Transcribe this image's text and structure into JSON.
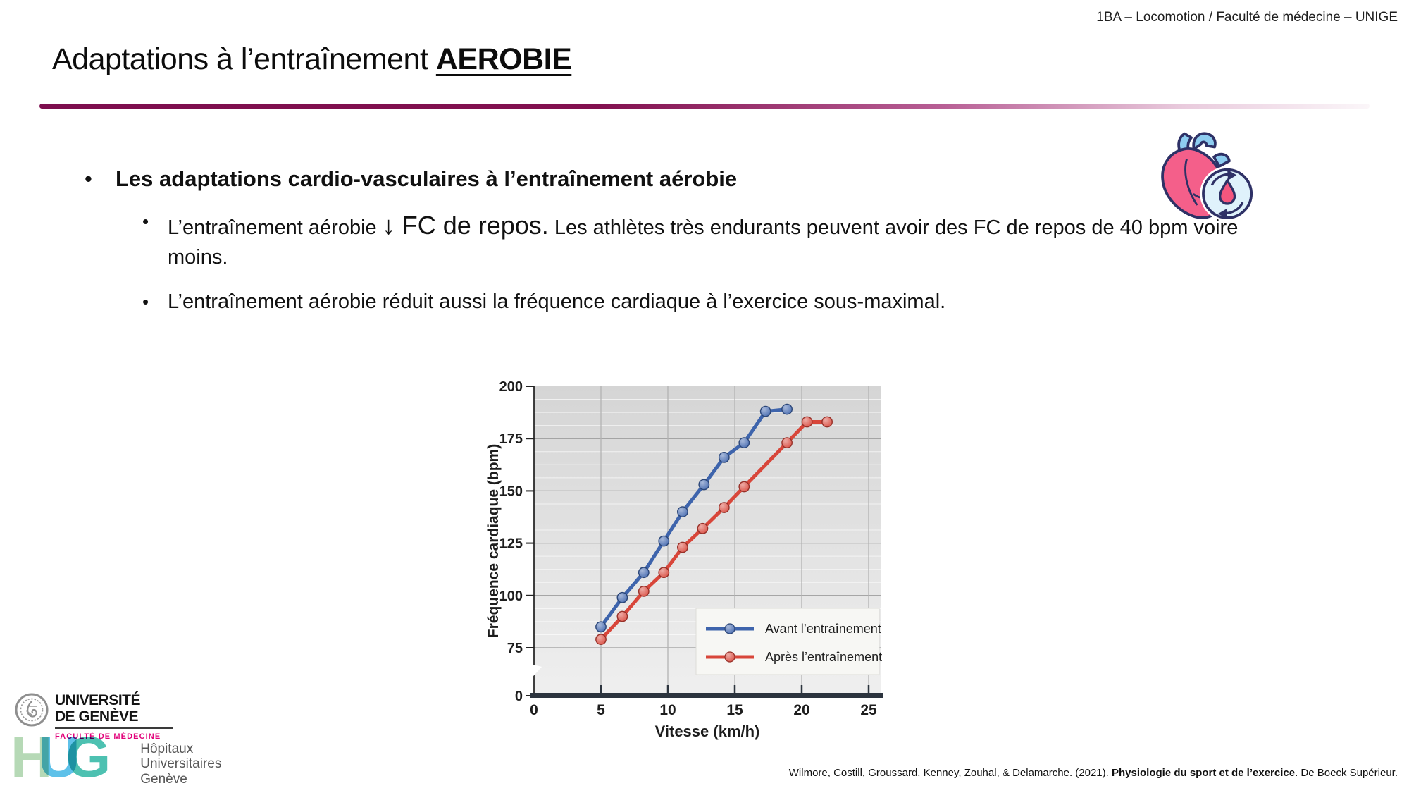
{
  "header": {
    "course": "1BA – Locomotion / Faculté de médecine – UNIGE"
  },
  "title": {
    "prefix": "Adaptations à l’entraînement ",
    "emphasis": "AEROBIE"
  },
  "glyphs": {
    "bullet": "•"
  },
  "bullets": {
    "main": "Les adaptations cardio-vasculaires à l’entraînement aérobie",
    "sub1": {
      "prefix": "L’entraînement aérobie ",
      "emphasis": "↓ FC de repos.",
      "suffix": " Les athlètes très endurants peuvent avoir des FC de repos de 40 bpm voire moins."
    },
    "sub2": "L’entraînement aérobie réduit aussi la fréquence cardiaque à l’exercice sous-maximal."
  },
  "icons": {
    "heart": "anatomical-heart-with-blood-circulation-badge",
    "unige_seal": "university-of-geneva-seal"
  },
  "chart_data": {
    "type": "line",
    "title": "",
    "xlabel": "Vitesse (km/h)",
    "ylabel": "Fréquence cardiaque (bpm)",
    "xlim": [
      0,
      25.9
    ],
    "ylim": [
      0,
      200
    ],
    "y_axis_break": true,
    "xticks": [
      0,
      5,
      10,
      15,
      20,
      25
    ],
    "yticks": [
      0,
      75,
      100,
      125,
      150,
      175,
      200
    ],
    "grid": true,
    "legend_position": "bottom-right",
    "series": [
      {
        "name": "Avant l’entraînement",
        "color": "#3E64AC",
        "points": [
          [
            5.0,
            85
          ],
          [
            6.6,
            99
          ],
          [
            8.2,
            111
          ],
          [
            9.7,
            126
          ],
          [
            11.1,
            140
          ],
          [
            12.7,
            153
          ],
          [
            14.2,
            166
          ],
          [
            15.7,
            173
          ],
          [
            17.3,
            188
          ],
          [
            18.9,
            189
          ]
        ]
      },
      {
        "name": "Après l’entraînement",
        "color": "#D8463A",
        "points": [
          [
            5.0,
            79
          ],
          [
            6.6,
            90
          ],
          [
            8.2,
            102
          ],
          [
            9.7,
            111
          ],
          [
            11.1,
            123
          ],
          [
            12.6,
            132
          ],
          [
            14.2,
            142
          ],
          [
            15.7,
            152
          ],
          [
            18.9,
            173
          ],
          [
            20.4,
            183
          ],
          [
            21.9,
            183
          ]
        ]
      }
    ]
  },
  "logos": {
    "unige": {
      "line1": "UNIVERSITÉ",
      "line2": "DE GENÈVE",
      "subtitle": "FACULTÉ DE MÉDECINE",
      "subtitle_color": "#e2007a"
    },
    "hug": {
      "letters": [
        "H",
        "U",
        "G"
      ],
      "letter_colors": [
        "#a9d3a9",
        "#41b6e6",
        "#2db6a3"
      ],
      "text_lines": [
        "Hôpitaux",
        "Universitaires",
        "Genève"
      ]
    }
  },
  "citation": {
    "authors": "Wilmore, Costill, Groussard, Kenney, Zouhal, & Delamarche. (2021). ",
    "book": "Physiologie du sport et de l’exercice",
    "suffix": ". De Boeck Supérieur."
  }
}
